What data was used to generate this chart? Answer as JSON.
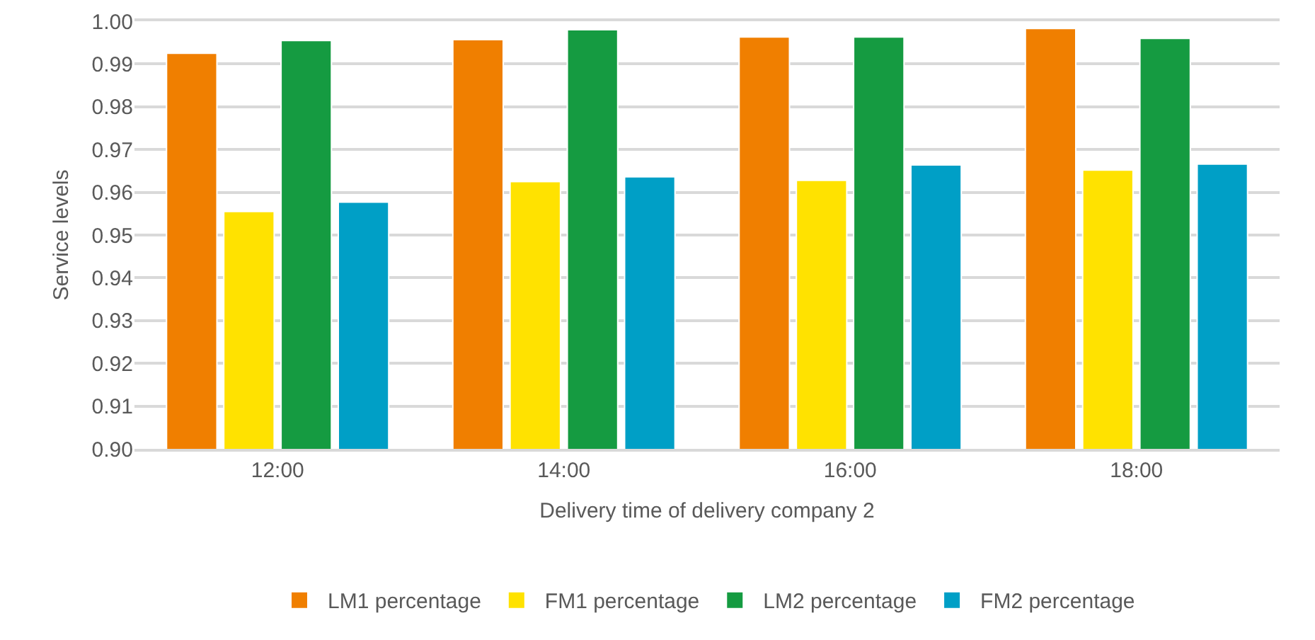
{
  "chart_data": {
    "type": "bar",
    "xlabel": "Delivery time of delivery company 2",
    "ylabel": "Service levels",
    "categories": [
      "12:00",
      "14:00",
      "16:00",
      "18:00"
    ],
    "series": [
      {
        "name": "LM1 percentage",
        "color": "#f07f00",
        "values": [
          0.9925,
          0.9957,
          0.9963,
          0.9983
        ]
      },
      {
        "name": "FM1 percentage",
        "color": "#ffe200",
        "values": [
          0.9555,
          0.9625,
          0.9628,
          0.9652
        ]
      },
      {
        "name": "LM2 percentage",
        "color": "#159b41",
        "values": [
          0.9955,
          0.998,
          0.9963,
          0.996
        ]
      },
      {
        "name": "FM2 percentage",
        "color": "#009fc6",
        "values": [
          0.9577,
          0.9636,
          0.9664,
          0.9666
        ]
      }
    ],
    "ylim": [
      0.9,
      1.0
    ],
    "yticks": [
      {
        "value": 0.9,
        "label": "0.90"
      },
      0.91,
      0.92,
      0.93,
      0.94,
      0.95,
      0.96,
      0.97,
      0.98,
      0.99,
      {
        "value": 1,
        "label": "1.00"
      }
    ],
    "grid": "y",
    "legend": "bottom"
  }
}
